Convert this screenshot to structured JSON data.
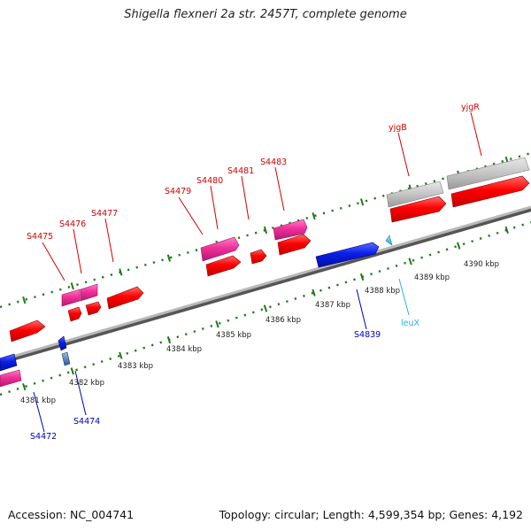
{
  "title": "Shigella flexneri 2a str. 2457T, complete genome",
  "accession_text": "Accession: NC_004741",
  "topology_text": "Topology: circular; Length: 4,599,354 bp; Genes: 4,192",
  "colors": {
    "label_red": "#d40000",
    "label_blue": "#0000b8",
    "label_cyan": "#2ab0e0",
    "gene_red": "#ff0000",
    "gene_pink": "#f0309a",
    "gene_blue": "#0a1ee8",
    "gene_gray": "#c0c0c0",
    "axis": "#8a8a8a",
    "tick_green": "#1e7a1e"
  },
  "scale": {
    "tick_labels": [
      "4381 kbp",
      "4382 kbp",
      "4383 kbp",
      "4384 kbp",
      "4385 kbp",
      "4386 kbp",
      "4387 kbp",
      "4388 kbp",
      "4389 kbp",
      "4390 kbp"
    ]
  },
  "gene_labels": [
    {
      "id": "S4472",
      "text": "S4472",
      "color": "blue"
    },
    {
      "id": "S4474",
      "text": "S4474",
      "color": "blue"
    },
    {
      "id": "S4475",
      "text": "S4475",
      "color": "red"
    },
    {
      "id": "S4476",
      "text": "S4476",
      "color": "red"
    },
    {
      "id": "S4477",
      "text": "S4477",
      "color": "red"
    },
    {
      "id": "S4479",
      "text": "S4479",
      "color": "red"
    },
    {
      "id": "S4480",
      "text": "S4480",
      "color": "red"
    },
    {
      "id": "S4481",
      "text": "S4481",
      "color": "red"
    },
    {
      "id": "S4483",
      "text": "S4483",
      "color": "red"
    },
    {
      "id": "yjgB",
      "text": "yjgB",
      "color": "red"
    },
    {
      "id": "yjgR",
      "text": "yjgR",
      "color": "red"
    },
    {
      "id": "S4839",
      "text": "S4839",
      "color": "blue"
    },
    {
      "id": "leuX",
      "text": "leuX",
      "color": "cyan"
    }
  ]
}
